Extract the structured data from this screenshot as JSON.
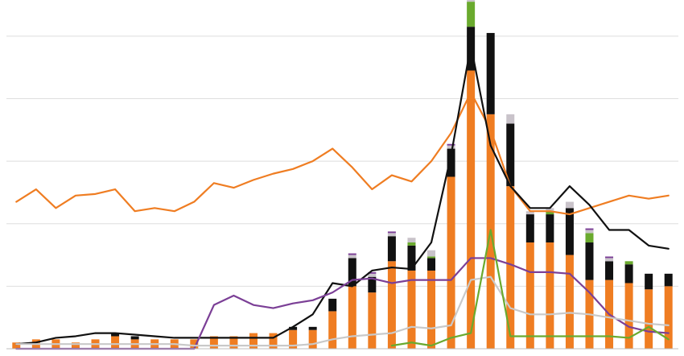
{
  "chart_data": {
    "type": "bar",
    "title": "",
    "xlabel": "",
    "ylabel": "",
    "ylim": [
      0,
      110
    ],
    "grid": true,
    "legend": "none",
    "n_categories": 34,
    "stack_series": [
      {
        "color": "#ef7d22",
        "values": [
          2,
          3,
          3,
          2,
          3,
          4,
          3,
          3,
          3,
          3,
          4,
          4,
          5,
          5,
          6,
          6,
          12,
          20,
          18,
          28,
          25,
          25,
          55,
          89,
          75,
          52,
          34,
          34,
          30,
          22,
          22,
          21,
          19,
          20
        ]
      },
      {
        "color": "#111111",
        "values": [
          0,
          0,
          0,
          0,
          0,
          1,
          1,
          0,
          0,
          0,
          0,
          0,
          0,
          0,
          1,
          1,
          4,
          9,
          5,
          8,
          8,
          4,
          9,
          14,
          26,
          20,
          9,
          9,
          15,
          12,
          6,
          6,
          5,
          4
        ]
      },
      {
        "color": "#6aaa2e",
        "values": [
          0,
          0,
          0,
          0,
          0,
          0,
          0,
          0,
          0,
          0,
          0,
          0,
          0,
          0,
          0,
          0,
          0,
          0,
          0,
          0,
          1,
          0.5,
          0,
          8,
          0,
          0,
          0,
          1,
          0,
          3,
          0,
          1,
          0,
          0
        ]
      },
      {
        "color": "#c9c3ca",
        "values": [
          0,
          0,
          0,
          0,
          0,
          0,
          0,
          0,
          0,
          0,
          0,
          0,
          0,
          0,
          0,
          0,
          0,
          1,
          1,
          1,
          1.5,
          2,
          1,
          4,
          0,
          3,
          1,
          1,
          2,
          1,
          1,
          0,
          0,
          0
        ]
      },
      {
        "color": "#7b3f96",
        "values": [
          0,
          0,
          0,
          0,
          0,
          0,
          0,
          0,
          0,
          0,
          0,
          0,
          0,
          0,
          0,
          0,
          0,
          0.5,
          0.5,
          0.5,
          0,
          0,
          0.5,
          0.5,
          0,
          0,
          0,
          0,
          0,
          0.5,
          0.5,
          0,
          0,
          0
        ]
      }
    ],
    "line_series": [
      {
        "color": "#ef7d22",
        "values": [
          47,
          51,
          45,
          49,
          49.5,
          51,
          44,
          45,
          44,
          47,
          53,
          51.5,
          54,
          56,
          57.5,
          60,
          64,
          58,
          51,
          55.5,
          53.5,
          60,
          69,
          82,
          70,
          52,
          44,
          44,
          43,
          45,
          47,
          49,
          48,
          49
        ]
      },
      {
        "color": "#111111",
        "values": [
          1.5,
          2,
          3.5,
          4,
          5,
          5,
          4.5,
          4,
          3.5,
          3.5,
          3.5,
          3.5,
          3.5,
          3.5,
          7,
          11,
          21,
          20,
          25,
          26,
          25.5,
          34,
          62,
          97,
          65,
          52,
          45,
          45,
          52,
          46,
          38,
          38,
          33,
          32
        ]
      },
      {
        "color": "#7b3f96",
        "values": [
          0,
          0,
          0,
          0,
          0,
          0,
          0,
          0,
          0,
          0,
          14,
          17,
          14,
          13,
          14.5,
          15.5,
          18,
          22,
          22.5,
          21,
          22,
          22,
          22,
          29,
          29,
          27,
          24.5,
          24.5,
          24,
          18,
          11,
          7,
          5.5,
          5
        ]
      },
      {
        "color": "#c9c9c9",
        "values": [
          1.5,
          1.5,
          1.5,
          1.5,
          1.5,
          1.5,
          1.5,
          1.5,
          1.5,
          1,
          1,
          1,
          1,
          1,
          1,
          1.5,
          3,
          4,
          4.5,
          5,
          7,
          6.5,
          7.5,
          22,
          23,
          13,
          11,
          11,
          11.5,
          11,
          10,
          9,
          8,
          7.5
        ]
      },
      {
        "color": "#6aaa2e",
        "values": [
          null,
          null,
          null,
          null,
          null,
          null,
          null,
          null,
          null,
          null,
          null,
          null,
          null,
          null,
          null,
          null,
          null,
          null,
          null,
          1,
          2,
          1,
          3.5,
          5,
          38,
          4,
          4,
          4,
          4,
          4,
          4,
          3.5,
          7,
          3
        ]
      }
    ]
  }
}
